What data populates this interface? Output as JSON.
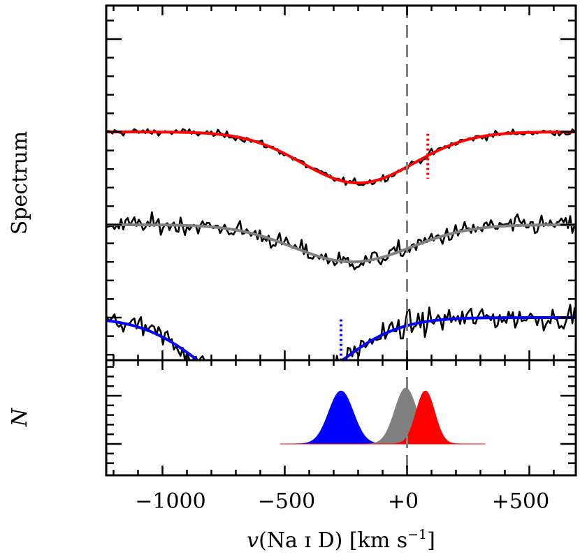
{
  "chart_data": {
    "type": "line",
    "ylabel_top": "Spectrum",
    "ylabel_bottom": "N",
    "xlabel_prefix": "v",
    "xlabel_body": "(Na ɪ D) [km s",
    "xlabel_exp": "−1",
    "xlabel_suffix": "]",
    "xlim": [
      -1230,
      690
    ],
    "xticks": [
      {
        "value": -1000,
        "label": "−1000"
      },
      {
        "value": -500,
        "label": "−500"
      },
      {
        "value": 0,
        "label": "+0"
      },
      {
        "value": 500,
        "label": "+500"
      }
    ],
    "reference_line_v": 0,
    "top_panel": {
      "description": "Normalized Na I D absorption spectra (offset vertically) with Gaussian fits",
      "series": [
        {
          "name": "red-spectrum",
          "fit_color": "#ff0000",
          "continuum": 2.0,
          "fit_center": -200,
          "fit_sigma": 230,
          "fit_depth": 0.55,
          "noise": 0.04,
          "marker_v": 85,
          "marker_color": "#ff0000"
        },
        {
          "name": "gray-spectrum",
          "fit_color": "#808080",
          "continuum": 1.0,
          "fit_center": -225,
          "fit_sigma": 240,
          "fit_depth": 0.4,
          "noise": 0.1,
          "marker_v": null,
          "marker_color": null
        },
        {
          "name": "blue-spectrum",
          "fit_color": "#0000ff",
          "continuum": 0.0,
          "fit_center": -560,
          "fit_sigma": 260,
          "fit_depth": 0.88,
          "noise": 0.13,
          "marker_v": -270,
          "marker_color": "#0000ff"
        }
      ]
    },
    "bottom_panel": {
      "description": "Posterior distributions of velocity centroids",
      "baseline_range": [
        -520,
        320
      ],
      "distributions": [
        {
          "name": "blue-posterior",
          "color": "#0000ff",
          "center": -270,
          "sigma": 50,
          "peak": 0.55
        },
        {
          "name": "gray-posterior",
          "color": "#808080",
          "center": -5,
          "sigma": 45,
          "peak": 0.58
        },
        {
          "name": "red-posterior",
          "color": "#ff0000",
          "center": 75,
          "sigma": 38,
          "peak": 0.55
        }
      ]
    }
  }
}
